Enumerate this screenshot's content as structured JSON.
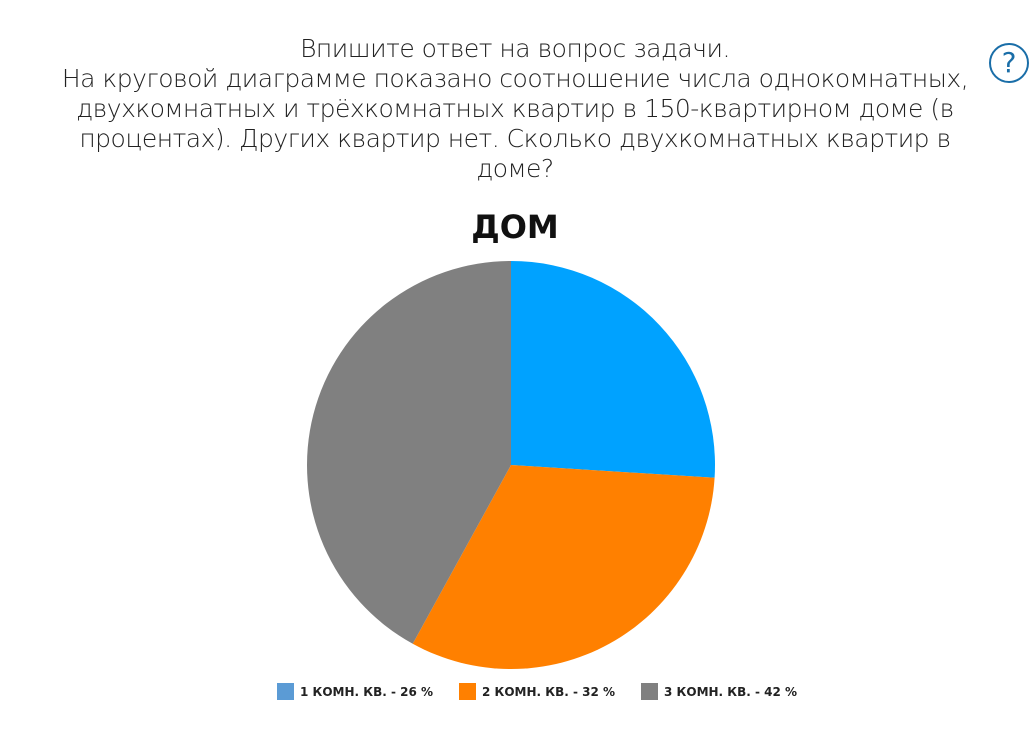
{
  "question": {
    "lines": [
      "Впишите ответ на вопрос задачи.",
      "На круговой диаграмме показано соотношение числа однокомнатных,",
      "двухкомнатных и трёхкомнатных квартир в 150-квартирном доме (в",
      "процентах). Других квартир нет. Сколько двухкомнатных квартир в",
      "доме?"
    ]
  },
  "help_icon": "?",
  "chart_data": {
    "type": "pie",
    "title": "ДОМ",
    "categories": [
      "1 КОМН. КВ.",
      "2 КОМН. КВ.",
      "3 КОМН. КВ."
    ],
    "values": [
      26,
      32,
      42
    ],
    "unit": "%",
    "colors": [
      "#00a2ff",
      "#ff8000",
      "#808080"
    ],
    "legend_colors": [
      "#5b9bd5",
      "#ff8000",
      "#808080"
    ],
    "legend_labels": [
      "1 КОМН. КВ. - 26 %",
      "2 КОМН. КВ. - 32 %",
      "3 КОМН. КВ. - 42 %"
    ],
    "legend_position": "bottom"
  }
}
